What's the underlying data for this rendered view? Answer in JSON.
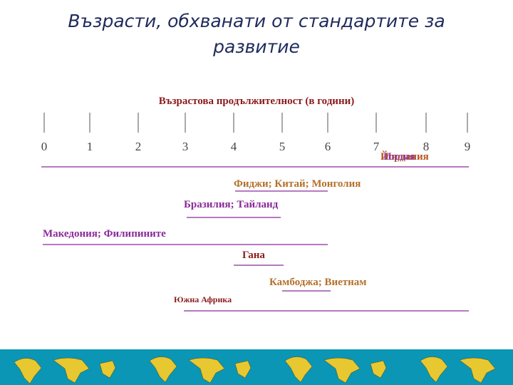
{
  "title": "Възрасти, обхванати от стандартите за развитие",
  "axis_label": "Възрастова продължителност (в години)",
  "ticks": [
    "0",
    "1",
    "2",
    "3",
    "4",
    "5",
    "6",
    "7",
    "8",
    "9"
  ],
  "rows": [
    {
      "labels": [
        "Йордания",
        "Индия"
      ]
    },
    {
      "labels": [
        "Фиджи; Китай; Монголия"
      ]
    },
    {
      "labels": [
        "Бразилия; Тайланд"
      ]
    },
    {
      "labels": [
        "Македония; Филипините"
      ]
    },
    {
      "labels": [
        "Гана"
      ]
    },
    {
      "labels": [
        "Камбоджа; Виетнам"
      ]
    },
    {
      "labels": [
        "Южна Африка"
      ]
    }
  ]
}
